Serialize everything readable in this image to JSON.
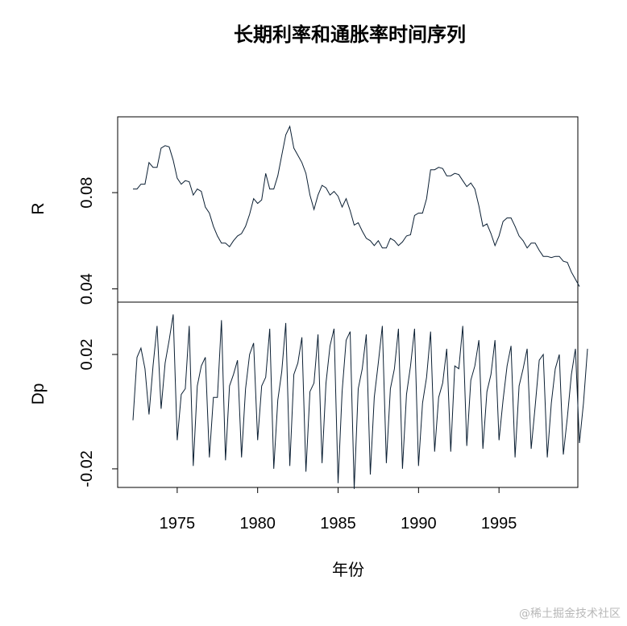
{
  "chart_data": {
    "type": "line",
    "title": "长期利率和通胀率时间序列",
    "xlabel": "年份",
    "x_ticks": [
      1975,
      1980,
      1985,
      1990,
      1995
    ],
    "xlim": [
      1971.3,
      1999.9
    ],
    "line_color": "#0b1f33",
    "frequency": "quarterly",
    "start": 1972.25,
    "panels": [
      {
        "name": "R",
        "ylim": [
          0.0345,
          0.1115
        ],
        "y_ticks": [
          0.04,
          0.08
        ],
        "y_tick_labels": [
          "0.04",
          "0.08"
        ],
        "values": [
          0.0815,
          0.0815,
          0.0835,
          0.0835,
          0.0925,
          0.0905,
          0.0905,
          0.0985,
          0.0995,
          0.099,
          0.0935,
          0.086,
          0.0835,
          0.085,
          0.0845,
          0.079,
          0.0815,
          0.0805,
          0.074,
          0.0715,
          0.066,
          0.062,
          0.059,
          0.059,
          0.0575,
          0.06,
          0.062,
          0.063,
          0.066,
          0.071,
          0.0775,
          0.0755,
          0.077,
          0.088,
          0.0815,
          0.0815,
          0.087,
          0.0955,
          0.104,
          0.1075,
          0.0985,
          0.0955,
          0.0925,
          0.088,
          0.079,
          0.073,
          0.079,
          0.083,
          0.082,
          0.079,
          0.0805,
          0.0785,
          0.074,
          0.0775,
          0.0725,
          0.0665,
          0.0675,
          0.064,
          0.061,
          0.06,
          0.058,
          0.06,
          0.057,
          0.057,
          0.061,
          0.06,
          0.058,
          0.0595,
          0.062,
          0.0625,
          0.0705,
          0.0715,
          0.0715,
          0.0775,
          0.0895,
          0.0895,
          0.0905,
          0.09,
          0.087,
          0.087,
          0.088,
          0.0875,
          0.085,
          0.0825,
          0.084,
          0.0815,
          0.0745,
          0.066,
          0.067,
          0.063,
          0.058,
          0.062,
          0.068,
          0.0695,
          0.0695,
          0.066,
          0.062,
          0.06,
          0.057,
          0.059,
          0.059,
          0.056,
          0.0535,
          0.0535,
          0.053,
          0.0535,
          0.0535,
          0.0515,
          0.051,
          0.047,
          0.044,
          0.041
        ]
      },
      {
        "name": "Dp",
        "ylim": [
          -0.0265,
          0.0383
        ],
        "y_ticks": [
          -0.02,
          0.02
        ],
        "y_tick_labels": [
          "-0.02",
          "0.02"
        ],
        "values": [
          -0.003,
          0.019,
          0.0222,
          0.015,
          -0.001,
          0.016,
          0.03,
          0.001,
          0.017,
          0.025,
          0.034,
          -0.01,
          0.006,
          0.008,
          0.03,
          -0.019,
          0.009,
          0.016,
          0.019,
          -0.016,
          0.005,
          0.005,
          0.032,
          -0.017,
          0.009,
          0.013,
          0.018,
          -0.016,
          0.008,
          0.02,
          0.024,
          -0.01,
          0.009,
          0.012,
          0.029,
          -0.02,
          0.004,
          0.014,
          0.031,
          -0.019,
          0.013,
          0.017,
          0.026,
          -0.021,
          0.007,
          0.01,
          0.027,
          -0.018,
          0.01,
          0.023,
          0.029,
          -0.025,
          0.007,
          0.025,
          0.028,
          -0.027,
          0.008,
          0.015,
          0.027,
          -0.022,
          0.005,
          0.017,
          0.03,
          -0.018,
          0.008,
          0.015,
          0.029,
          -0.02,
          0.006,
          0.016,
          0.029,
          -0.019,
          0.003,
          0.012,
          0.028,
          -0.014,
          0.005,
          0.01,
          0.022,
          -0.014,
          0.016,
          0.015,
          0.03,
          -0.012,
          0.011,
          0.016,
          0.025,
          -0.013,
          0.007,
          0.013,
          0.025,
          -0.01,
          0.004,
          0.016,
          0.023,
          -0.016,
          0.009,
          0.015,
          0.022,
          -0.013,
          0.002,
          0.018,
          0.02,
          -0.016,
          0.003,
          0.015,
          0.02,
          -0.015,
          -0.002,
          0.013,
          0.022,
          -0.011,
          0.003,
          0.022
        ]
      }
    ]
  },
  "watermark": "@稀土掘金技术社区"
}
